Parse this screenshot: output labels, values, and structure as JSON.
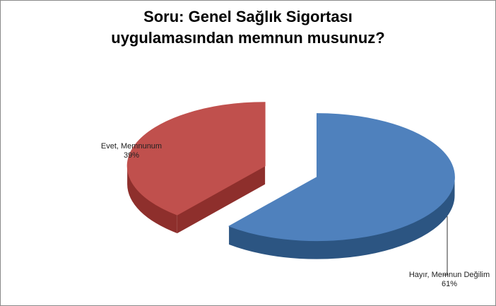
{
  "chart_data": {
    "type": "pie",
    "title": "Soru: Genel Sağlık Sigortası uygulamasından memnun musunuz?",
    "categories": [
      "Hayır, Memnun Değilim",
      "Evet, Memnunum"
    ],
    "values": [
      61,
      39
    ],
    "value_labels": [
      "61%",
      "39%"
    ],
    "colors": [
      "#4f81bd",
      "#c0504d"
    ],
    "side_colors": [
      "#2c5582",
      "#8e2f2c"
    ]
  }
}
